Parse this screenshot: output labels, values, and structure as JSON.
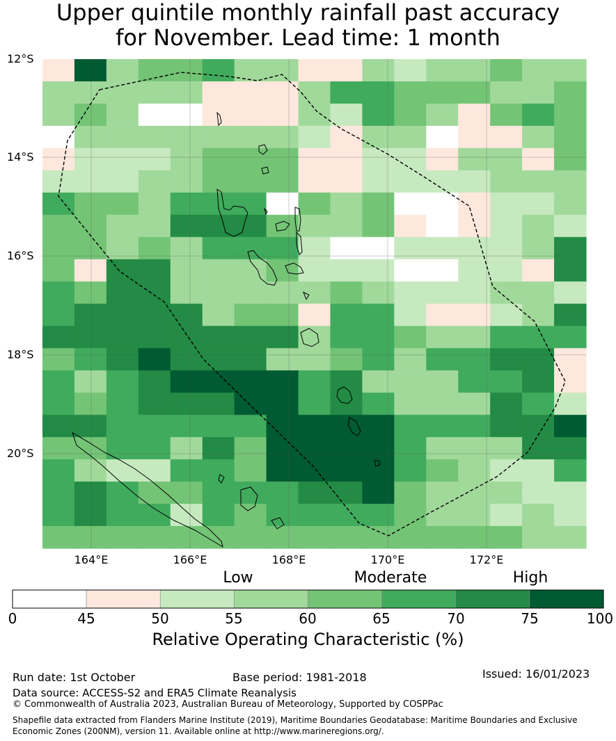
{
  "title": {
    "line1": "Upper quintile monthly rainfall past accuracy",
    "line2": "for November. Lead time: 1 month"
  },
  "map": {
    "lat_labels": [
      "12°S",
      "14°S",
      "16°S",
      "18°S",
      "20°S"
    ],
    "lon_labels": [
      "164°E",
      "166°E",
      "168°E",
      "170°E",
      "172°E"
    ],
    "palette": [
      "#ffffff",
      "#fee8dd",
      "#c7e9c0",
      "#a1d99b",
      "#74c476",
      "#41ab5d",
      "#238b45",
      "#005a32"
    ],
    "cell_classes": [
      "17344533113233433",
      "33333111355444334",
      "34300111325431454",
      "03333333213301134",
      "12223444112213314",
      "22233444112222333",
      "54435550434001223",
      "44336664334101232",
      "44343555200222236",
      "41663334222002216",
      "54663333343222332",
      "56666344155211236",
      "66666666355433555",
      "45676663345355661",
      "53567777563335561",
      "54566677565333652",
      "66555557777555667",
      "44553647777533366",
      "53225547777543225",
      "56544555667433322",
      "56552545555433232",
      "44444444444444433"
    ],
    "land_outline_color": "#000000",
    "eez_boundary_style": "dashed"
  },
  "legend": {
    "categories": [
      "Low",
      "Moderate",
      "High"
    ],
    "ticks": [
      "0",
      "45",
      "50",
      "55",
      "60",
      "65",
      "70",
      "75",
      "100"
    ],
    "colors": [
      "#ffffff",
      "#fee8dd",
      "#c7e9c0",
      "#a1d99b",
      "#74c476",
      "#41ab5d",
      "#238b45",
      "#005a32"
    ],
    "title": "Relative Operating Characteristic (%)"
  },
  "footer": {
    "run_date": "Run date: 1st October",
    "base_period": "Base period: 1981-2018",
    "issued": "Issued: 16/01/2023",
    "data_source": "Data source: ACCESS-S2 and ERA5 Climate Reanalysis",
    "copyright": "© Commonwealth of Australia 2023, Australian Bureau of Meteorology, Supported by COSPPac",
    "shapefile": "Shapefile data extracted from Flanders Marine Institute (2019), Maritime Boundaries Geodatabase: Maritime Boundaries and Exclusive Economic Zones (200NM), version 11. Available online at http://www.marineregions.org/."
  }
}
